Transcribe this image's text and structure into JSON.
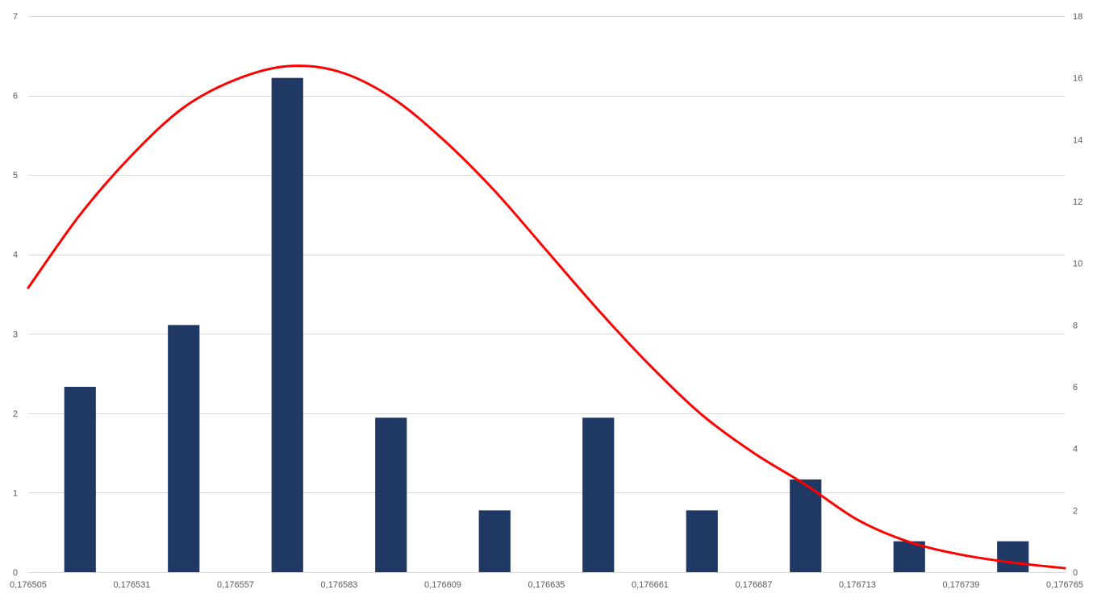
{
  "chart_data": {
    "type": "bar",
    "title": "",
    "xlabel": "",
    "ylabel": "",
    "y2label": "",
    "grid": true,
    "legend": "none",
    "x_ticks": [
      "0,176505",
      "0,176531",
      "0,176557",
      "0,176583",
      "0,176609",
      "0,176635",
      "0,176661",
      "0,176687",
      "0,176713",
      "0,176739",
      "0,176765"
    ],
    "ylim_left": [
      0,
      7
    ],
    "y_ticks_left": [
      "0",
      "1",
      "2",
      "3",
      "4",
      "5",
      "6",
      "7"
    ],
    "ylim_right": [
      0,
      18
    ],
    "y_ticks_right": [
      "0",
      "2",
      "4",
      "6",
      "8",
      "10",
      "12",
      "14",
      "16",
      "18"
    ],
    "series": [
      {
        "type": "bar",
        "axis": "right",
        "color": "#1f3864",
        "bin_centers": [
          0.176518,
          0.176544,
          0.17657,
          0.176596,
          0.176622,
          0.176648,
          0.176674,
          0.1767,
          0.176726,
          0.176752
        ],
        "values": [
          6,
          8,
          16,
          5,
          2,
          5,
          2,
          3,
          1,
          1
        ]
      },
      {
        "type": "line",
        "axis": "left",
        "color": "#ff0000",
        "x": [
          0.176505,
          0.176518,
          0.176531,
          0.176544,
          0.176557,
          0.17657,
          0.176583,
          0.176596,
          0.176609,
          0.176622,
          0.176635,
          0.176648,
          0.176661,
          0.176674,
          0.176687,
          0.1767,
          0.176713,
          0.176726,
          0.176739,
          0.176752,
          0.176765
        ],
        "y": [
          3.58,
          4.5,
          5.25,
          5.85,
          6.2,
          6.37,
          6.3,
          5.98,
          5.45,
          4.8,
          4.05,
          3.3,
          2.6,
          1.98,
          1.5,
          1.1,
          0.66,
          0.38,
          0.22,
          0.12,
          0.05
        ]
      }
    ]
  }
}
